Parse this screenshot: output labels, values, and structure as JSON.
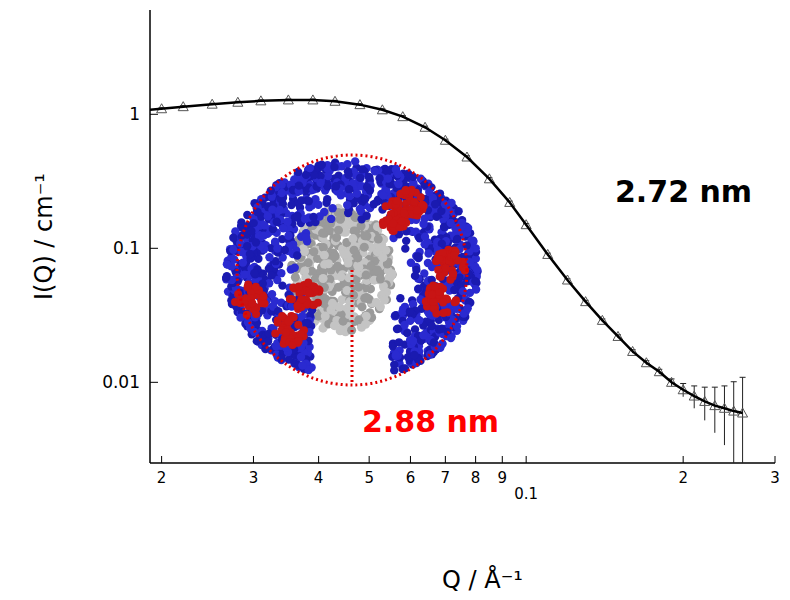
{
  "chart_data": {
    "type": "scatter",
    "xlabel": "Q / Å⁻¹",
    "ylabel": "I(Q) / cm⁻¹",
    "log": true,
    "grid": false,
    "xlim": [
      0.019,
      0.3
    ],
    "ylim": [
      0.0025,
      6
    ],
    "xticks": [
      {
        "value": 0.02,
        "label": "2"
      },
      {
        "value": 0.03,
        "label": "3"
      },
      {
        "value": 0.04,
        "label": "4"
      },
      {
        "value": 0.05,
        "label": "5"
      },
      {
        "value": 0.06,
        "label": "6"
      },
      {
        "value": 0.07,
        "label": "7"
      },
      {
        "value": 0.08,
        "label": "8"
      },
      {
        "value": 0.09,
        "label": "9"
      },
      0.1,
      {
        "value": 0.2,
        "label": "2"
      },
      {
        "value": 0.3,
        "label": "3"
      }
    ],
    "yticks": [
      0.01,
      0.1,
      1
    ],
    "series": [
      {
        "type": "scatter",
        "marker": "triangle",
        "color": "#555555",
        "x": [
          0.02,
          0.022,
          0.025,
          0.028,
          0.031,
          0.035,
          0.039,
          0.043,
          0.048,
          0.053,
          0.058,
          0.064,
          0.07,
          0.077,
          0.085,
          0.093,
          0.1,
          0.11,
          0.12,
          0.13,
          0.14,
          0.15,
          0.16,
          0.17,
          0.18,
          0.19,
          0.2,
          0.21,
          0.22,
          0.23,
          0.24,
          0.25,
          0.26
        ],
        "values": [
          1.1,
          1.14,
          1.19,
          1.23,
          1.26,
          1.28,
          1.28,
          1.25,
          1.18,
          1.08,
          0.96,
          0.8,
          0.64,
          0.48,
          0.33,
          0.22,
          0.15,
          0.09,
          0.058,
          0.04,
          0.029,
          0.022,
          0.017,
          0.014,
          0.012,
          0.01,
          0.0088,
          0.0079,
          0.0072,
          0.0067,
          0.0064,
          0.0061,
          0.0059
        ],
        "errors": [
          0.02,
          0.02,
          0.02,
          0.02,
          0.02,
          0.02,
          0.02,
          0.02,
          0.02,
          0.02,
          0.02,
          0.015,
          0.012,
          0.01,
          0.007,
          0.005,
          0.003,
          0.002,
          0.0012,
          0.0009,
          0.0007,
          0.0006,
          0.0005,
          0.0005,
          0.0005,
          0.0006,
          0.001,
          0.0015,
          0.002,
          0.0025,
          0.003,
          0.004,
          0.005
        ]
      },
      {
        "type": "line",
        "line_style": "solid",
        "color": "#000000",
        "x": [
          0.019,
          0.022,
          0.025,
          0.028,
          0.031,
          0.035,
          0.039,
          0.043,
          0.048,
          0.053,
          0.058,
          0.064,
          0.07,
          0.077,
          0.085,
          0.093,
          0.1,
          0.11,
          0.12,
          0.13,
          0.14,
          0.15,
          0.16,
          0.17,
          0.18,
          0.19,
          0.2,
          0.21,
          0.22,
          0.23,
          0.24,
          0.25,
          0.26
        ],
        "values": [
          1.08,
          1.14,
          1.19,
          1.23,
          1.26,
          1.28,
          1.28,
          1.25,
          1.18,
          1.08,
          0.96,
          0.8,
          0.64,
          0.48,
          0.33,
          0.22,
          0.15,
          0.09,
          0.058,
          0.04,
          0.029,
          0.022,
          0.017,
          0.014,
          0.012,
          0.01,
          0.0088,
          0.0079,
          0.0072,
          0.0067,
          0.0064,
          0.0061,
          0.0059
        ]
      }
    ],
    "annotations": [
      {
        "text": "2.72 nm",
        "color": "#000000"
      },
      {
        "text": "2.88 nm",
        "color": "#ff0000"
      }
    ]
  }
}
